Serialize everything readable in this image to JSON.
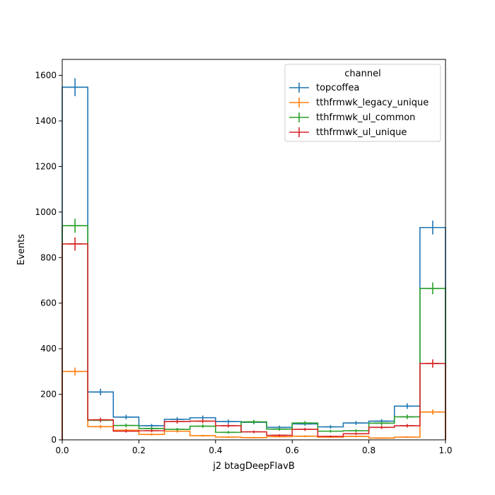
{
  "chart_data": {
    "type": "histogram-step",
    "xlabel": "j2 btagDeepFlavB",
    "ylabel": "Events",
    "xlim": [
      0.0,
      1.0
    ],
    "ylim": [
      0,
      1670
    ],
    "xticks": [
      0.0,
      0.2,
      0.4,
      0.6,
      0.8,
      1.0
    ],
    "xtick_labels": [
      "0.0",
      "0.2",
      "0.4",
      "0.6",
      "0.8",
      "1.0"
    ],
    "yticks": [
      0,
      200,
      400,
      600,
      800,
      1000,
      1200,
      1400,
      1600
    ],
    "ytick_labels": [
      "0",
      "200",
      "400",
      "600",
      "800",
      "1000",
      "1200",
      "1400",
      "1600"
    ],
    "bin_edges": [
      0.0,
      0.0667,
      0.1333,
      0.2,
      0.2667,
      0.3333,
      0.4,
      0.4667,
      0.5333,
      0.6,
      0.6667,
      0.7333,
      0.8,
      0.8667,
      0.9333,
      1.0
    ],
    "legend": {
      "title": "channel",
      "placement": "upper right"
    },
    "series": [
      {
        "name": "topcoffea",
        "color": "#1f77b4",
        "values": [
          1548,
          210,
          100,
          62,
          90,
          97,
          80,
          77,
          55,
          70,
          57,
          74,
          82,
          148,
          932
        ]
      },
      {
        "name": "tthfrmwk_legacy_unique",
        "color": "#ff7f0e",
        "values": [
          300,
          58,
          42,
          24,
          38,
          18,
          12,
          10,
          14,
          16,
          12,
          15,
          8,
          12,
          122
        ]
      },
      {
        "name": "tthfrmwk_ul_common",
        "color": "#2ca02c",
        "values": [
          940,
          86,
          63,
          50,
          46,
          60,
          33,
          79,
          47,
          74,
          38,
          40,
          73,
          101,
          665
        ]
      },
      {
        "name": "tthfrmwk_ul_unique",
        "color": "#d62728",
        "values": [
          860,
          88,
          38,
          40,
          80,
          82,
          62,
          35,
          20,
          46,
          15,
          27,
          55,
          62,
          335
        ]
      }
    ]
  }
}
